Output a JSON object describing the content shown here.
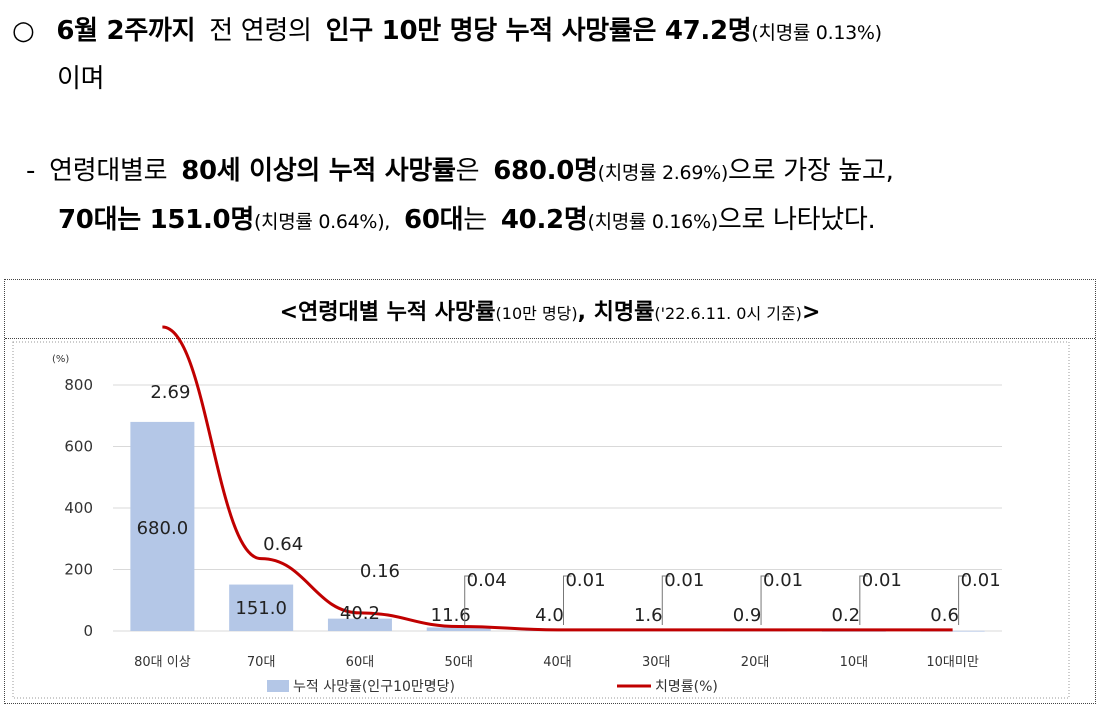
{
  "text": {
    "bullet1_mark": "○",
    "bullet1_b1": "6월 2주까지",
    "bullet1_t1": "전 연령의",
    "bullet1_b2": "인구 10만 명당 누적 사망률은 47.2명",
    "bullet1_s1": "(치명률 0.13%)",
    "bullet1_t2": "이며",
    "bullet2_mark": "-",
    "bullet2_t1": "연령대별로",
    "bullet2_b1": "80세 이상의 누적 사망률",
    "bullet2_t2": "은",
    "bullet2_b2": "680.0명",
    "bullet2_s1": "(치명률 2.69%)",
    "bullet2_t3": "으로 가장 높고,",
    "bullet2_b3": "70대는 151.0명",
    "bullet2_s2": "(치명률 0.64%),",
    "bullet2_b4": "60대",
    "bullet2_t4": "는",
    "bullet2_b5": "40.2명",
    "bullet2_s3": "(치명률 0.16%)",
    "bullet2_t5": "으로 나타났다."
  },
  "chart_title": {
    "b1": "<연령대별 누적 사망률",
    "s1": "(10만 명당)",
    "b2": ", 치명률",
    "s2": "('22.6.11. 0시 기준)",
    "b3": ">"
  },
  "chart_data": {
    "type": "bar",
    "y_unit_label": "(%)",
    "categories": [
      "80대 이상",
      "70대",
      "60대",
      "50대",
      "40대",
      "30대",
      "20대",
      "10대",
      "10대미만"
    ],
    "ylim": [
      0,
      800
    ],
    "yticks": [
      "0",
      "200",
      "400",
      "600",
      "800"
    ],
    "series": [
      {
        "name": "누적 사망률(인구10만명당)",
        "type": "bar",
        "values": [
          680.0,
          151.0,
          40.2,
          11.6,
          4.0,
          1.6,
          0.9,
          0.2,
          0.6
        ],
        "labels": [
          "680.0",
          "151.0",
          "40.2",
          "11.6",
          "4.0",
          "1.6",
          "0.9",
          "0.2",
          "0.6"
        ],
        "color": "#b4c7e7"
      },
      {
        "name": "치명률(%)",
        "type": "line",
        "values": [
          2.69,
          0.64,
          0.16,
          0.04,
          0.01,
          0.01,
          0.01,
          0.01,
          0.01
        ],
        "labels": [
          "2.69",
          "0.64",
          "0.16",
          "0.04",
          "0.01",
          "0.01",
          "0.01",
          "0.01",
          "0.01"
        ],
        "color": "#c00000"
      }
    ],
    "legend_position": "bottom",
    "grid": true
  }
}
